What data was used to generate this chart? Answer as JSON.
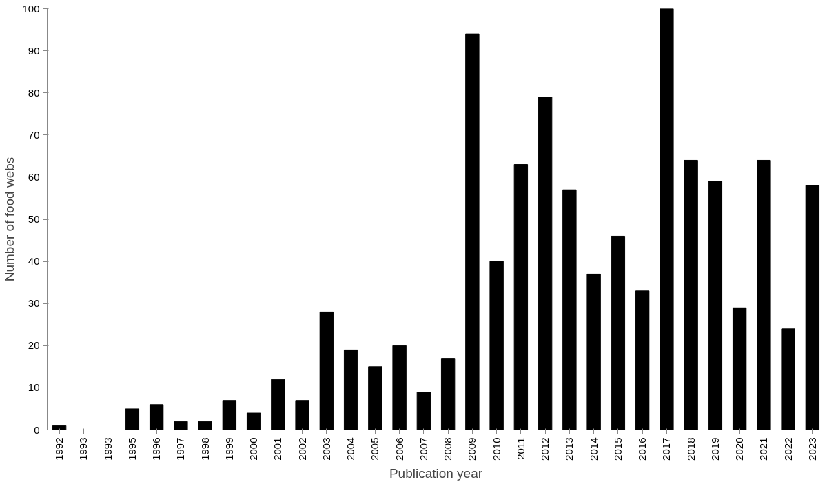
{
  "chart_data": {
    "type": "bar",
    "xlabel": "Publication year",
    "ylabel": "Number of food webs",
    "categories": [
      "1992",
      "1993",
      "1993",
      "1995",
      "1996",
      "1997",
      "1998",
      "1999",
      "2000",
      "2001",
      "2002",
      "2003",
      "2004",
      "2005",
      "2006",
      "2007",
      "2008",
      "2009",
      "2010",
      "2011",
      "2012",
      "2013",
      "2014",
      "2015",
      "2016",
      "2017",
      "2018",
      "2019",
      "2020",
      "2021",
      "2022",
      "2023"
    ],
    "values": [
      1,
      0,
      0,
      5,
      6,
      2,
      2,
      7,
      4,
      12,
      7,
      28,
      19,
      15,
      20,
      9,
      17,
      94,
      40,
      63,
      79,
      57,
      37,
      46,
      33,
      100,
      64,
      59,
      29,
      64,
      24,
      58
    ],
    "color": "#000000",
    "ylim": [
      0,
      100
    ],
    "yticks": [
      0,
      10,
      20,
      30,
      40,
      50,
      60,
      70,
      80,
      90,
      100
    ],
    "grid": false
  }
}
